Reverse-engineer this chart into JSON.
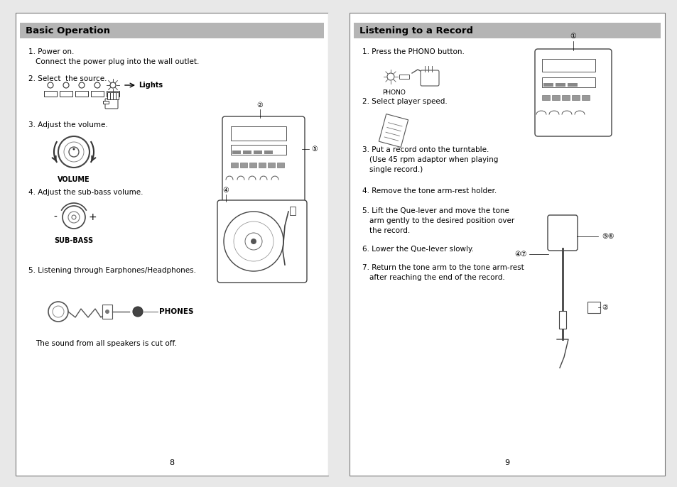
{
  "page_bg": "#e8e8e8",
  "left_bg": "#ffffff",
  "right_bg": "#ffffff",
  "header_bg": "#b0b0b0",
  "left_header": "Basic Operation",
  "right_header": "Listening to a Record",
  "left_items": [
    "1. Power on.",
    "   Connect the power plug into the wall outlet.",
    "",
    "2. Select  the source.",
    "",
    "",
    "",
    "3. Adjust the volume.",
    "",
    "",
    "",
    "4. Adjust the sub-bass volume.",
    "",
    "",
    "",
    "5. Listening through Earphones/Headphones."
  ],
  "right_items": [
    "1. Press the PHONO button.",
    "",
    "",
    "2. Select player speed.",
    "",
    "",
    "3. Put a record onto the turntable.",
    "   (Use 45 rpm adaptor when playing",
    "   single record.)",
    "",
    "4. Remove the tone arm-rest holder.",
    "",
    "5. Lift the Que-lever and move the tone",
    "   arm gently to the desired position over",
    "   the record.",
    "",
    "6. Lower the Que-lever slowly.",
    "",
    "7. Return the tone arm to the tone arm-rest",
    "   after reaching the end of the record."
  ],
  "left_page_num": "8",
  "right_page_num": "9",
  "footer_text": "The sound from all speakers is cut off."
}
